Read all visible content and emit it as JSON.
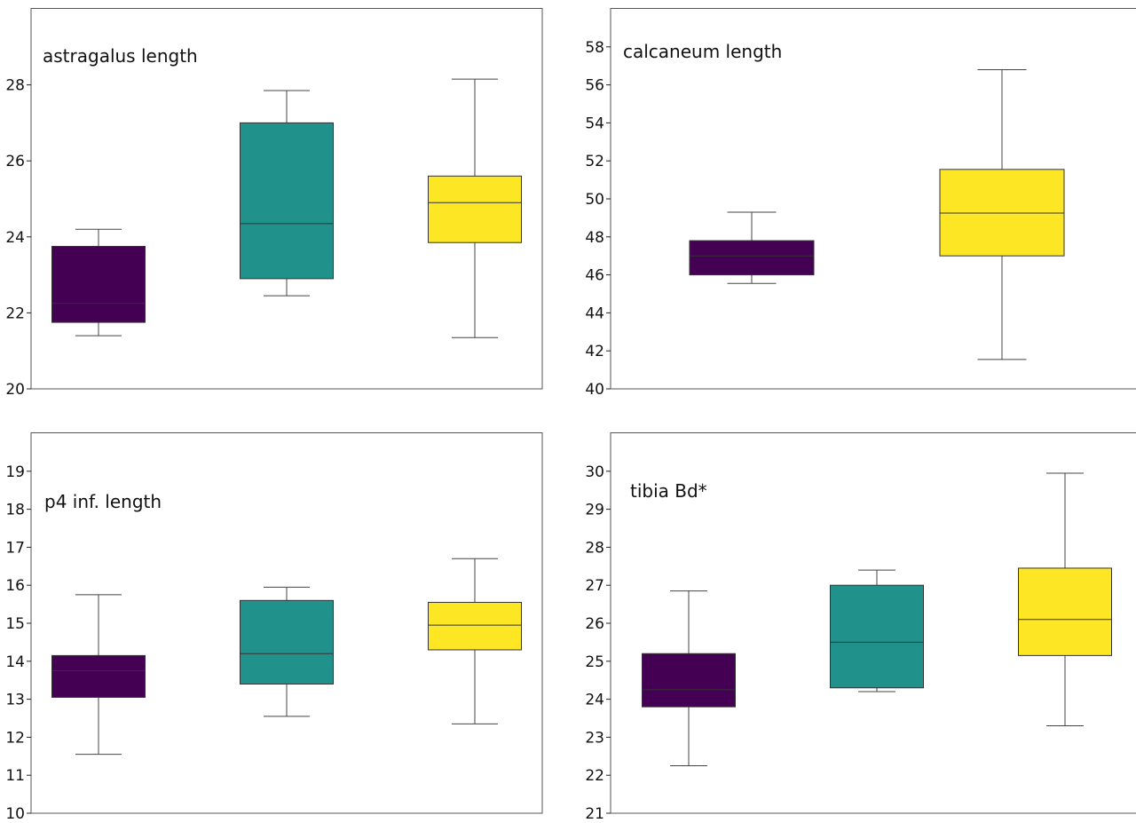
{
  "chart_data": [
    {
      "type": "box",
      "title": "astragalus length",
      "ylim": [
        20,
        30
      ],
      "yticks": [
        20,
        22,
        24,
        26,
        28
      ],
      "grid": false,
      "series": [
        {
          "color": "#440154",
          "whisker_low": 21.4,
          "q1": 21.75,
          "median": 22.25,
          "q3": 23.75,
          "whisker_high": 24.2
        },
        {
          "color": "#21918c",
          "whisker_low": 22.45,
          "q1": 22.9,
          "median": 24.35,
          "q3": 27.0,
          "whisker_high": 27.85
        },
        {
          "color": "#fde725",
          "whisker_low": 21.35,
          "q1": 23.85,
          "median": 24.9,
          "q3": 25.6,
          "whisker_high": 28.15
        }
      ]
    },
    {
      "type": "box",
      "title": "calcaneum length",
      "ylim": [
        40,
        60
      ],
      "yticks": [
        40,
        42,
        44,
        46,
        48,
        50,
        52,
        54,
        56,
        58
      ],
      "grid": false,
      "series": [
        {
          "color": "#440154",
          "whisker_low": 45.55,
          "q1": 46.0,
          "median": 47.0,
          "q3": 47.8,
          "whisker_high": 49.3
        },
        {
          "color": "#fde725",
          "whisker_low": 41.55,
          "q1": 47.0,
          "median": 49.25,
          "q3": 51.55,
          "whisker_high": 56.8
        }
      ]
    },
    {
      "type": "box",
      "title": "p4 inf. length",
      "ylim": [
        10,
        20
      ],
      "yticks": [
        10,
        11,
        12,
        13,
        14,
        15,
        16,
        17,
        18,
        19
      ],
      "grid": false,
      "series": [
        {
          "color": "#440154",
          "whisker_low": 11.55,
          "q1": 13.05,
          "median": 13.75,
          "q3": 14.15,
          "whisker_high": 15.75
        },
        {
          "color": "#21918c",
          "whisker_low": 12.55,
          "q1": 13.4,
          "median": 14.2,
          "q3": 15.6,
          "whisker_high": 15.95
        },
        {
          "color": "#fde725",
          "whisker_low": 12.35,
          "q1": 14.3,
          "median": 14.95,
          "q3": 15.55,
          "whisker_high": 16.7
        }
      ]
    },
    {
      "type": "box",
      "title": "tibia Bd*",
      "ylim": [
        21,
        31
      ],
      "yticks": [
        21,
        22,
        23,
        24,
        25,
        26,
        27,
        28,
        29,
        30
      ],
      "grid": false,
      "series": [
        {
          "color": "#440154",
          "whisker_low": 22.25,
          "q1": 23.8,
          "median": 24.25,
          "q3": 25.2,
          "whisker_high": 26.85
        },
        {
          "color": "#21918c",
          "whisker_low": 24.2,
          "q1": 24.3,
          "median": 25.5,
          "q3": 27.0,
          "whisker_high": 27.4
        },
        {
          "color": "#fde725",
          "whisker_low": 23.3,
          "q1": 25.15,
          "median": 26.1,
          "q3": 27.45,
          "whisker_high": 29.95
        }
      ]
    }
  ]
}
